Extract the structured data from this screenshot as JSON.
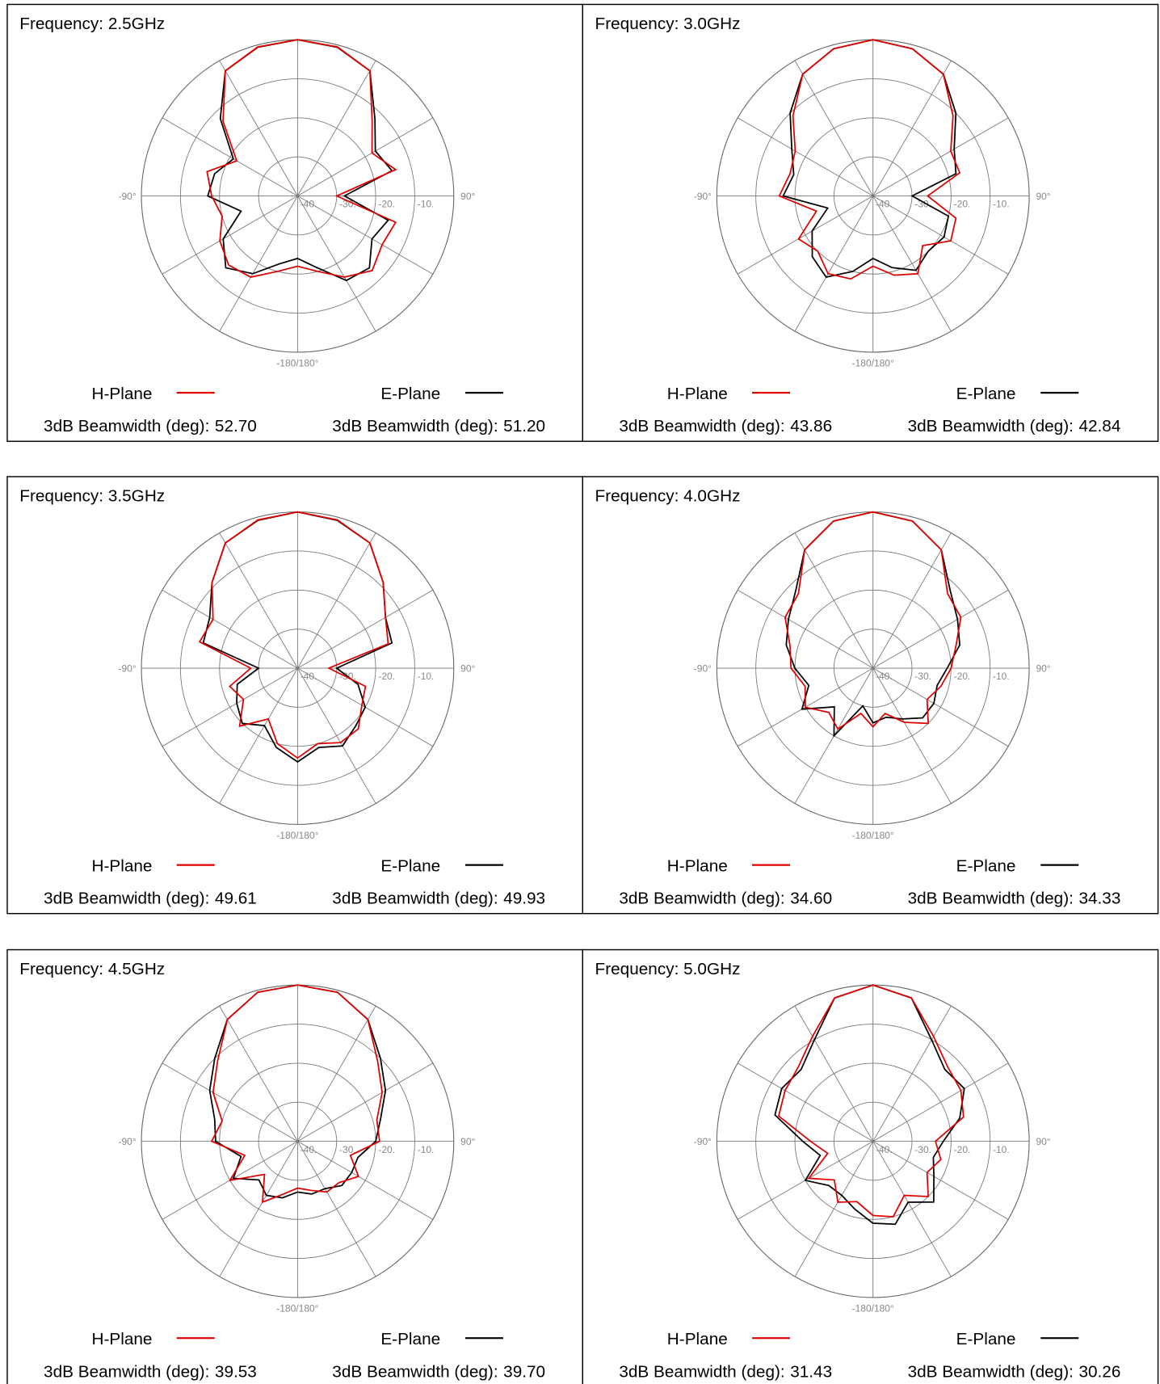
{
  "chart_data": [
    {
      "type": "polar",
      "title": "Frequency: 2.5GHz",
      "theta": [
        -180,
        -165,
        -150,
        -135,
        -120,
        -105,
        -90,
        -75,
        -60,
        -45,
        -30,
        -15,
        0,
        15,
        30,
        45,
        60,
        75,
        90,
        105,
        120,
        135,
        150,
        165
      ],
      "rlim": [
        -40,
        0
      ],
      "rticks": [
        {
          "value": -40,
          "label": "-40."
        },
        {
          "value": -30,
          "label": "-30."
        },
        {
          "value": -20,
          "label": "-20."
        },
        {
          "value": -10,
          "label": "-10."
        }
      ],
      "thetaticks": [
        -180,
        -150,
        -120,
        -90,
        -60,
        -30,
        0,
        30,
        60,
        90,
        120,
        150
      ],
      "angle_labels": [
        {
          "value": -90,
          "label": "-90°"
        },
        {
          "value": 90,
          "label": "90°"
        },
        {
          "value": 180,
          "label": "-180/180°"
        }
      ],
      "beamwidth_title": "3dB Beamwidth (deg):",
      "series": [
        {
          "name": "H-Plane",
          "color": "#e00000",
          "beamwidth": 52.7,
          "beamwidth_label": "52.70",
          "values": [
            -22,
            -20,
            -16,
            -15,
            -17,
            -20,
            -18,
            -16,
            -22,
            -13,
            -3,
            -0.5,
            0,
            -0.5,
            -3,
            -13,
            -18,
            -14,
            -30,
            -14,
            -15,
            -13,
            -16,
            -20
          ]
        },
        {
          "name": "E-Plane",
          "color": "#000000",
          "beamwidth": 51.2,
          "beamwidth_label": "51.20",
          "values": [
            -24,
            -22,
            -17,
            -14,
            -18,
            -25,
            -17,
            -18,
            -21,
            -12,
            -3,
            -0.6,
            0,
            -0.6,
            -3,
            -12,
            -17,
            -15,
            -28,
            -16,
            -18,
            -14,
            -15,
            -21
          ]
        }
      ]
    },
    {
      "type": "polar",
      "title": "Frequency: 3.0GHz",
      "theta": [
        -180,
        -165,
        -150,
        -135,
        -120,
        -105,
        -90,
        -75,
        -60,
        -45,
        -30,
        -15,
        0,
        15,
        30,
        45,
        60,
        75,
        90,
        105,
        120,
        135,
        150,
        165
      ],
      "rlim": [
        -40,
        0
      ],
      "rticks": [
        {
          "value": -40,
          "label": "-40."
        },
        {
          "value": -30,
          "label": "-30."
        },
        {
          "value": -20,
          "label": "-20."
        },
        {
          "value": -10,
          "label": "-10."
        }
      ],
      "thetaticks": [
        -180,
        -150,
        -120,
        -90,
        -60,
        -30,
        0,
        30,
        60,
        90,
        120,
        150
      ],
      "angle_labels": [
        {
          "value": -90,
          "label": "-90°"
        },
        {
          "value": 90,
          "label": "90°"
        },
        {
          "value": 180,
          "label": "-180/180°"
        }
      ],
      "beamwidth_title": "3dB Beamwidth (deg):",
      "series": [
        {
          "name": "H-Plane",
          "color": "#e00000",
          "beamwidth": 43.86,
          "beamwidth_label": "43.86",
          "values": [
            -22,
            -18,
            -17,
            -20,
            -18,
            -25,
            -16,
            -18,
            -17,
            -11,
            -4,
            -1,
            0,
            -1,
            -4,
            -11,
            -17,
            -17,
            -26,
            -18,
            -17,
            -22,
            -17,
            -19
          ]
        },
        {
          "name": "E-Plane",
          "color": "#000000",
          "beamwidth": 42.84,
          "beamwidth_label": "42.84",
          "values": [
            -24,
            -20,
            -16,
            -18,
            -22,
            -28,
            -17,
            -19,
            -16,
            -10,
            -4,
            -1,
            0,
            -1,
            -4,
            -10,
            -16,
            -18,
            -30,
            -20,
            -19,
            -20,
            -18,
            -21
          ]
        }
      ]
    },
    {
      "type": "polar",
      "title": "Frequency: 3.5GHz",
      "theta": [
        -180,
        -165,
        -150,
        -135,
        -120,
        -105,
        -90,
        -75,
        -60,
        -45,
        -30,
        -15,
        0,
        15,
        30,
        45,
        60,
        75,
        90,
        105,
        120,
        135,
        150,
        165
      ],
      "rlim": [
        -40,
        0
      ],
      "rticks": [
        {
          "value": -40,
          "label": "-40."
        },
        {
          "value": -30,
          "label": "-30."
        },
        {
          "value": -20,
          "label": "-20."
        },
        {
          "value": -10,
          "label": "-10."
        }
      ],
      "thetaticks": [
        -180,
        -150,
        -120,
        -90,
        -60,
        -30,
        0,
        30,
        60,
        90,
        120,
        150
      ],
      "angle_labels": [
        {
          "value": -90,
          "label": "-90°"
        },
        {
          "value": 90,
          "label": "90°"
        },
        {
          "value": 180,
          "label": "-180/180°"
        }
      ],
      "beamwidth_title": "3dB Beamwidth (deg):",
      "series": [
        {
          "name": "H-Plane",
          "color": "#e00000",
          "beamwidth": 49.61,
          "beamwidth_label": "49.61",
          "values": [
            -17,
            -20,
            -25,
            -19,
            -24,
            -22,
            -28,
            -14,
            -15,
            -9,
            -3,
            -0.7,
            0,
            -0.7,
            -3,
            -9,
            -14,
            -16,
            -32,
            -22,
            -21,
            -18,
            -18,
            -20
          ]
        },
        {
          "name": "E-Plane",
          "color": "#000000",
          "beamwidth": 49.93,
          "beamwidth_label": "49.93",
          "values": [
            -16,
            -19,
            -23,
            -20,
            -22,
            -24,
            -30,
            -15,
            -14,
            -9,
            -3,
            -0.8,
            0,
            -0.8,
            -3,
            -9,
            -14,
            -15,
            -30,
            -24,
            -20,
            -19,
            -17,
            -19
          ]
        }
      ]
    },
    {
      "type": "polar",
      "title": "Frequency: 4.0GHz",
      "theta": [
        -180,
        -165,
        -150,
        -135,
        -120,
        -105,
        -90,
        -75,
        -60,
        -45,
        -30,
        -15,
        0,
        15,
        30,
        45,
        60,
        75,
        90,
        105,
        120,
        135,
        150,
        165
      ],
      "rlim": [
        -40,
        0
      ],
      "rticks": [
        {
          "value": -40,
          "label": "-40."
        },
        {
          "value": -30,
          "label": "-30."
        },
        {
          "value": -20,
          "label": "-20."
        },
        {
          "value": -10,
          "label": "-10."
        }
      ],
      "thetaticks": [
        -180,
        -150,
        -120,
        -90,
        -60,
        -30,
        0,
        30,
        60,
        90,
        120,
        150
      ],
      "angle_labels": [
        {
          "value": -90,
          "label": "-90°"
        },
        {
          "value": 90,
          "label": "90°"
        },
        {
          "value": 180,
          "label": "-180/180°"
        }
      ],
      "beamwidth_title": "3dB Beamwidth (deg):",
      "series": [
        {
          "name": "H-Plane",
          "color": "#e00000",
          "beamwidth": 34.6,
          "beamwidth_label": "34.60",
          "values": [
            -25,
            -28,
            -22,
            -24,
            -20,
            -22,
            -19,
            -18,
            -14,
            -13,
            -5,
            -1,
            0,
            -1,
            -5,
            -13,
            -14,
            -18,
            -20,
            -22,
            -24,
            -20,
            -24,
            -28
          ]
        },
        {
          "name": "E-Plane",
          "color": "#000000",
          "beamwidth": 34.33,
          "beamwidth_label": "34.33",
          "values": [
            -26,
            -30,
            -20,
            -26,
            -19,
            -23,
            -20,
            -17,
            -15,
            -12,
            -5,
            -1,
            0,
            -1,
            -5,
            -12,
            -15,
            -17,
            -21,
            -23,
            -22,
            -22,
            -25,
            -27
          ]
        }
      ]
    },
    {
      "type": "polar",
      "title": "Frequency: 4.5GHz",
      "theta": [
        -180,
        -165,
        -150,
        -135,
        -120,
        -105,
        -90,
        -75,
        -60,
        -45,
        -30,
        -15,
        0,
        15,
        30,
        45,
        60,
        75,
        90,
        105,
        120,
        135,
        150,
        165
      ],
      "rlim": [
        -40,
        0
      ],
      "rticks": [
        {
          "value": -40,
          "label": "-40."
        },
        {
          "value": -30,
          "label": "-30."
        },
        {
          "value": -20,
          "label": "-20."
        },
        {
          "value": -10,
          "label": "-10."
        }
      ],
      "thetaticks": [
        -180,
        -150,
        -120,
        -90,
        -60,
        -30,
        0,
        30,
        60,
        90,
        120,
        150
      ],
      "angle_labels": [
        {
          "value": -90,
          "label": "-90°"
        },
        {
          "value": 90,
          "label": "90°"
        },
        {
          "value": 180,
          "label": "-180/180°"
        }
      ],
      "beamwidth_title": "3dB Beamwidth (deg):",
      "series": [
        {
          "name": "H-Plane",
          "color": "#e00000",
          "beamwidth": 39.53,
          "beamwidth_label": "39.53",
          "values": [
            -28,
            -26,
            -22,
            -28,
            -20,
            -26,
            -18,
            -20,
            -15,
            -11,
            -4,
            -0.5,
            0,
            -0.5,
            -4,
            -11,
            -15,
            -19,
            -19,
            -26,
            -22,
            -25,
            -25,
            -27
          ]
        },
        {
          "name": "E-Plane",
          "color": "#000000",
          "beamwidth": 39.7,
          "beamwidth_label": "39.70",
          "values": [
            -27,
            -25,
            -24,
            -26,
            -21,
            -25,
            -19,
            -18,
            -14,
            -10,
            -4,
            -0.5,
            0,
            -0.5,
            -4,
            -10,
            -14,
            -18,
            -20,
            -24,
            -24,
            -24,
            -26,
            -26
          ]
        }
      ]
    },
    {
      "type": "polar",
      "title": "Frequency: 5.0GHz",
      "theta": [
        -180,
        -165,
        -150,
        -135,
        -120,
        -105,
        -90,
        -75,
        -60,
        -45,
        -30,
        -15,
        0,
        15,
        30,
        45,
        60,
        75,
        90,
        105,
        120,
        135,
        150,
        165
      ],
      "rlim": [
        -40,
        0
      ],
      "rticks": [
        {
          "value": -40,
          "label": "-40."
        },
        {
          "value": -30,
          "label": "-30."
        },
        {
          "value": -20,
          "label": "-20."
        },
        {
          "value": -10,
          "label": "-10."
        }
      ],
      "thetaticks": [
        -180,
        -150,
        -120,
        -90,
        -60,
        -30,
        0,
        30,
        60,
        90,
        120,
        150
      ],
      "angle_labels": [
        {
          "value": -90,
          "label": "-90°"
        },
        {
          "value": 90,
          "label": "90°"
        },
        {
          "value": 180,
          "label": "-180/180°"
        }
      ],
      "beamwidth_title": "3dB Beamwidth (deg):",
      "series": [
        {
          "name": "H-Plane",
          "color": "#e00000",
          "beamwidth": 31.43,
          "beamwidth_label": "31.43",
          "values": [
            -21,
            -24,
            -22,
            -26,
            -21,
            -28,
            -24,
            -15,
            -14,
            -13,
            -9,
            -2,
            0,
            -2,
            -9,
            -13,
            -14,
            -16,
            -24,
            -22,
            -24,
            -20,
            -24,
            -20
          ]
        },
        {
          "name": "E-Plane",
          "color": "#000000",
          "beamwidth": 30.26,
          "beamwidth_label": "30.26",
          "values": [
            -19,
            -22,
            -24,
            -24,
            -20,
            -26,
            -22,
            -14,
            -13,
            -14,
            -10,
            -2,
            0,
            -2,
            -10,
            -14,
            -13,
            -17,
            -22,
            -24,
            -22,
            -18,
            -22,
            -18
          ]
        }
      ]
    }
  ]
}
